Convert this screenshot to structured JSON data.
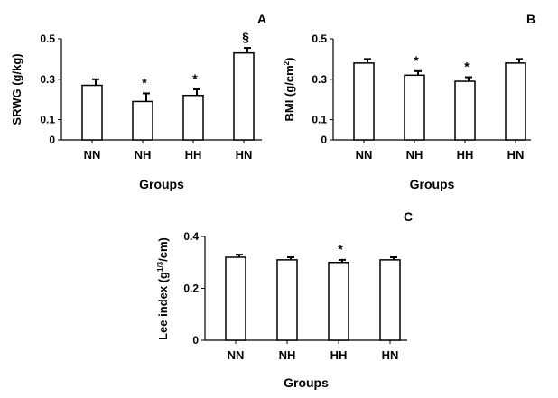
{
  "chart_data": [
    {
      "type": "bar",
      "panel": "A",
      "categories": [
        "NN",
        "NH",
        "HH",
        "HN"
      ],
      "values": [
        0.27,
        0.19,
        0.22,
        0.43
      ],
      "errors": [
        0.03,
        0.04,
        0.03,
        0.025
      ],
      "annotations": [
        "",
        "*",
        "*",
        "§"
      ],
      "ylabel": "SRWG (g/kg)",
      "ylabel_sup": "",
      "ylabel_tail": "",
      "xlabel": "Groups",
      "ylim": [
        0,
        0.5
      ],
      "yticks": [
        "0",
        "0.1",
        "0.3",
        "0.5"
      ],
      "ytick_values": [
        0,
        0.1,
        0.3,
        0.5
      ]
    },
    {
      "type": "bar",
      "panel": "B",
      "categories": [
        "NN",
        "NH",
        "HH",
        "HN"
      ],
      "values": [
        0.38,
        0.32,
        0.29,
        0.38
      ],
      "errors": [
        0.02,
        0.02,
        0.02,
        0.02
      ],
      "annotations": [
        "",
        "*",
        "*",
        ""
      ],
      "ylabel": "BMI (g/cm",
      "ylabel_sup": "2",
      "ylabel_tail": ")",
      "xlabel": "Groups",
      "ylim": [
        0,
        0.5
      ],
      "yticks": [
        "0",
        "0.1",
        "0.3",
        "0.5"
      ],
      "ytick_values": [
        0,
        0.1,
        0.3,
        0.5
      ]
    },
    {
      "type": "bar",
      "panel": "C",
      "categories": [
        "NN",
        "NH",
        "HH",
        "HN"
      ],
      "values": [
        0.32,
        0.31,
        0.3,
        0.31
      ],
      "errors": [
        0.01,
        0.01,
        0.01,
        0.01
      ],
      "annotations": [
        "",
        "",
        "*",
        ""
      ],
      "ylabel": "Lee index (g",
      "ylabel_sup": "1/3",
      "ylabel_tail": "/cm)",
      "xlabel": "Groups",
      "ylim": [
        0,
        0.4
      ],
      "yticks": [
        "0",
        "0.2",
        "0.4"
      ],
      "ytick_values": [
        0,
        0.2,
        0.4
      ]
    }
  ]
}
